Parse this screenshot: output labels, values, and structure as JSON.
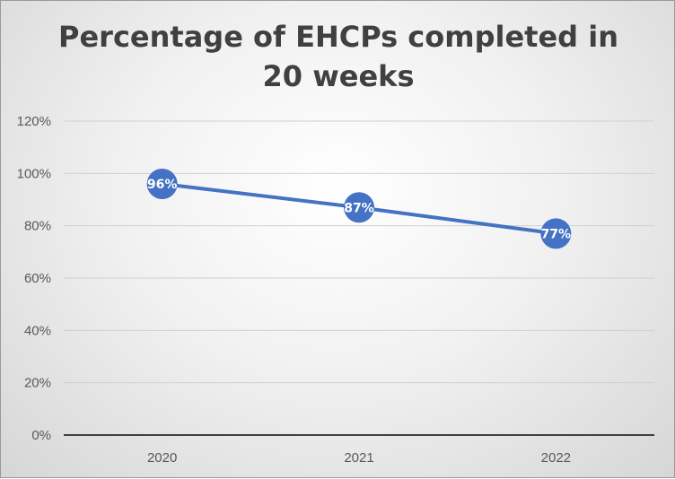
{
  "chart_data": {
    "type": "line",
    "title": "Percentage of EHCPs completed in 20 weeks",
    "categories": [
      "2020",
      "2021",
      "2022"
    ],
    "series": [
      {
        "values": [
          96,
          87,
          77
        ],
        "labels": [
          "96%",
          "87%",
          "77%"
        ]
      }
    ],
    "ylim": [
      0,
      120
    ],
    "yticks": [
      0,
      20,
      40,
      60,
      80,
      100,
      120
    ],
    "ytick_labels": [
      "0%",
      "20%",
      "40%",
      "60%",
      "80%",
      "100%",
      "120%"
    ],
    "grid": true,
    "legend": "none",
    "colors": {
      "series": "#4472c4",
      "grid": "#d0d0d0",
      "axis": "#404040",
      "label": "#ffffff"
    }
  }
}
